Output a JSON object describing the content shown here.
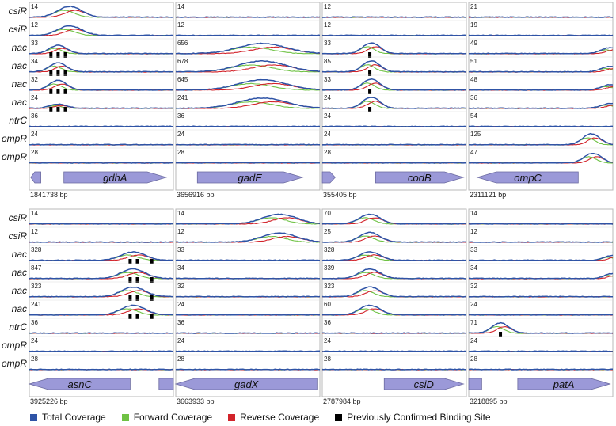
{
  "panels": [
    {
      "tracks": [
        {
          "label": "csiR",
          "cols": [
            {
              "max": "14",
              "peaks": [
                {
                  "pos": 0.28,
                  "h": 0.9,
                  "w": 0.07
                }
              ]
            },
            {
              "max": "14",
              "peaks": []
            },
            {
              "max": "12",
              "peaks": []
            },
            {
              "max": "21",
              "peaks": []
            }
          ]
        },
        {
          "label": "csiR",
          "cols": [
            {
              "max": "12",
              "peaks": [
                {
                  "pos": 0.28,
                  "h": 0.8,
                  "w": 0.07
                }
              ]
            },
            {
              "max": "12",
              "peaks": []
            },
            {
              "max": "12",
              "peaks": []
            },
            {
              "max": "19",
              "peaks": []
            }
          ]
        },
        {
          "label": "nac",
          "cols": [
            {
              "max": "33",
              "peaks": [
                {
                  "pos": 0.2,
                  "h": 0.7,
                  "w": 0.05
                }
              ],
              "sites": [
                0.15,
                0.2,
                0.25
              ]
            },
            {
              "max": "656",
              "peaks": [
                {
                  "pos": 0.6,
                  "h": 0.85,
                  "w": 0.14
                }
              ]
            },
            {
              "max": "33",
              "peaks": [
                {
                  "pos": 0.34,
                  "h": 0.9,
                  "w": 0.05
                }
              ],
              "sites": [
                0.33
              ]
            },
            {
              "max": "49",
              "peaks": [
                {
                  "pos": 0.98,
                  "h": 0.5,
                  "w": 0.05
                }
              ]
            }
          ]
        },
        {
          "label": "nac",
          "cols": [
            {
              "max": "34",
              "peaks": [
                {
                  "pos": 0.2,
                  "h": 0.75,
                  "w": 0.05
                }
              ],
              "sites": [
                0.15,
                0.2,
                0.25
              ]
            },
            {
              "max": "678",
              "peaks": [
                {
                  "pos": 0.6,
                  "h": 0.9,
                  "w": 0.14
                }
              ]
            },
            {
              "max": "85",
              "peaks": [
                {
                  "pos": 0.34,
                  "h": 0.92,
                  "w": 0.05
                }
              ],
              "sites": [
                0.33
              ]
            },
            {
              "max": "51",
              "peaks": [
                {
                  "pos": 0.98,
                  "h": 0.45,
                  "w": 0.05
                }
              ]
            }
          ]
        },
        {
          "label": "nac",
          "cols": [
            {
              "max": "32",
              "peaks": [
                {
                  "pos": 0.2,
                  "h": 0.8,
                  "w": 0.05
                }
              ],
              "sites": [
                0.15,
                0.2,
                0.25
              ]
            },
            {
              "max": "645",
              "peaks": [
                {
                  "pos": 0.6,
                  "h": 0.85,
                  "w": 0.14
                }
              ]
            },
            {
              "max": "33",
              "peaks": [
                {
                  "pos": 0.34,
                  "h": 0.92,
                  "w": 0.05
                }
              ],
              "sites": [
                0.33
              ]
            },
            {
              "max": "48",
              "peaks": [
                {
                  "pos": 0.98,
                  "h": 0.45,
                  "w": 0.05
                }
              ]
            }
          ]
        },
        {
          "label": "nac",
          "cols": [
            {
              "max": "24",
              "peaks": [
                {
                  "pos": 0.2,
                  "h": 0.35,
                  "w": 0.05
                }
              ],
              "sites": [
                0.15,
                0.2,
                0.25
              ]
            },
            {
              "max": "241",
              "peaks": [
                {
                  "pos": 0.6,
                  "h": 0.85,
                  "w": 0.14
                }
              ]
            },
            {
              "max": "24",
              "peaks": [
                {
                  "pos": 0.34,
                  "h": 0.92,
                  "w": 0.05
                }
              ],
              "sites": [
                0.33
              ]
            },
            {
              "max": "36",
              "peaks": [
                {
                  "pos": 0.98,
                  "h": 0.4,
                  "w": 0.05
                }
              ]
            }
          ]
        },
        {
          "label": "ntrC",
          "cols": [
            {
              "max": "36",
              "peaks": []
            },
            {
              "max": "36",
              "peaks": []
            },
            {
              "max": "24",
              "peaks": []
            },
            {
              "max": "54",
              "peaks": []
            }
          ]
        },
        {
          "label": "ompR",
          "cols": [
            {
              "max": "24",
              "peaks": []
            },
            {
              "max": "24",
              "peaks": []
            },
            {
              "max": "24",
              "peaks": []
            },
            {
              "max": "125",
              "peaks": [
                {
                  "pos": 0.85,
                  "h": 0.9,
                  "w": 0.05
                }
              ]
            }
          ]
        },
        {
          "label": "ompR",
          "cols": [
            {
              "max": "28",
              "peaks": []
            },
            {
              "max": "28",
              "peaks": []
            },
            {
              "max": "28",
              "peaks": []
            },
            {
              "max": "47",
              "peaks": [
                {
                  "pos": 0.86,
                  "h": 0.8,
                  "w": 0.05
                }
              ]
            }
          ]
        }
      ],
      "genes": [
        {
          "name": "gdhA",
          "coord": "1841738 bp",
          "main": {
            "x0": 0.24,
            "x1": 0.95,
            "dir": "right"
          },
          "extra": [
            {
              "x0": 0.01,
              "x1": 0.08,
              "dir": "left"
            }
          ]
        },
        {
          "name": "gadE",
          "coord": "3656916 bp",
          "main": {
            "x0": 0.15,
            "x1": 0.88,
            "dir": "right"
          },
          "extra": []
        },
        {
          "name": "codB",
          "coord": "355405 bp",
          "main": {
            "x0": 0.37,
            "x1": 0.98,
            "dir": "right"
          },
          "extra": [
            {
              "x0": 0.0,
              "x1": 0.09,
              "dir": "right"
            }
          ]
        },
        {
          "name": "ompC",
          "coord": "2311121 bp",
          "main": {
            "x0": 0.06,
            "x1": 0.76,
            "dir": "left"
          },
          "extra": []
        }
      ]
    },
    {
      "tracks": [
        {
          "label": "csiR",
          "cols": [
            {
              "max": "14",
              "peaks": []
            },
            {
              "max": "14",
              "peaks": [
                {
                  "pos": 0.72,
                  "h": 0.8,
                  "w": 0.1
                }
              ]
            },
            {
              "max": "70",
              "peaks": [
                {
                  "pos": 0.33,
                  "h": 0.8,
                  "w": 0.06
                }
              ]
            },
            {
              "max": "14",
              "peaks": []
            }
          ]
        },
        {
          "label": "csiR",
          "cols": [
            {
              "max": "12",
              "peaks": []
            },
            {
              "max": "12",
              "peaks": [
                {
                  "pos": 0.72,
                  "h": 0.75,
                  "w": 0.1
                }
              ]
            },
            {
              "max": "25",
              "peaks": [
                {
                  "pos": 0.33,
                  "h": 0.8,
                  "w": 0.06
                }
              ]
            },
            {
              "max": "12",
              "peaks": []
            }
          ]
        },
        {
          "label": "nac",
          "cols": [
            {
              "max": "328",
              "peaks": [
                {
                  "pos": 0.72,
                  "h": 0.7,
                  "w": 0.07
                }
              ],
              "sites": [
                0.7,
                0.75,
                0.85
              ]
            },
            {
              "max": "33",
              "peaks": []
            },
            {
              "max": "328",
              "peaks": [
                {
                  "pos": 0.33,
                  "h": 0.7,
                  "w": 0.06
                }
              ]
            },
            {
              "max": "33",
              "peaks": [
                {
                  "pos": 0.99,
                  "h": 0.4,
                  "w": 0.04
                }
              ]
            }
          ]
        },
        {
          "label": "nac",
          "cols": [
            {
              "max": "847",
              "peaks": [
                {
                  "pos": 0.72,
                  "h": 0.8,
                  "w": 0.07
                }
              ],
              "sites": [
                0.7,
                0.75,
                0.85
              ]
            },
            {
              "max": "34",
              "peaks": []
            },
            {
              "max": "339",
              "peaks": [
                {
                  "pos": 0.33,
                  "h": 0.8,
                  "w": 0.06
                }
              ]
            },
            {
              "max": "34",
              "peaks": [
                {
                  "pos": 0.99,
                  "h": 0.4,
                  "w": 0.04
                }
              ]
            }
          ]
        },
        {
          "label": "nac",
          "cols": [
            {
              "max": "323",
              "peaks": [
                {
                  "pos": 0.72,
                  "h": 0.8,
                  "w": 0.07
                }
              ],
              "sites": [
                0.7,
                0.75,
                0.85
              ]
            },
            {
              "max": "32",
              "peaks": []
            },
            {
              "max": "323",
              "peaks": [
                {
                  "pos": 0.33,
                  "h": 0.8,
                  "w": 0.06
                }
              ]
            },
            {
              "max": "32",
              "peaks": []
            }
          ]
        },
        {
          "label": "nac",
          "cols": [
            {
              "max": "241",
              "peaks": [
                {
                  "pos": 0.72,
                  "h": 0.8,
                  "w": 0.07
                }
              ],
              "sites": [
                0.7,
                0.75,
                0.85
              ]
            },
            {
              "max": "24",
              "peaks": []
            },
            {
              "max": "60",
              "peaks": [
                {
                  "pos": 0.33,
                  "h": 0.8,
                  "w": 0.06
                }
              ]
            },
            {
              "max": "24",
              "peaks": []
            }
          ]
        },
        {
          "label": "ntrC",
          "cols": [
            {
              "max": "36",
              "peaks": []
            },
            {
              "max": "36",
              "peaks": []
            },
            {
              "max": "36",
              "peaks": []
            },
            {
              "max": "71",
              "peaks": [
                {
                  "pos": 0.22,
                  "h": 0.85,
                  "w": 0.05
                }
              ],
              "sites": [
                0.22
              ]
            }
          ]
        },
        {
          "label": "ompR",
          "cols": [
            {
              "max": "24",
              "peaks": []
            },
            {
              "max": "24",
              "peaks": []
            },
            {
              "max": "24",
              "peaks": []
            },
            {
              "max": "24",
              "peaks": []
            }
          ]
        },
        {
          "label": "ompR",
          "cols": [
            {
              "max": "28",
              "peaks": []
            },
            {
              "max": "28",
              "peaks": []
            },
            {
              "max": "28",
              "peaks": []
            },
            {
              "max": "28",
              "peaks": []
            }
          ]
        }
      ],
      "genes": [
        {
          "name": "asnC",
          "coord": "3925226 bp",
          "main": {
            "x0": 0.0,
            "x1": 0.7,
            "dir": "left"
          },
          "extra": [
            {
              "x0": 0.9,
              "x1": 1.0,
              "dir": "none"
            }
          ]
        },
        {
          "name": "gadX",
          "coord": "3663933 bp",
          "main": {
            "x0": 0.0,
            "x1": 0.98,
            "dir": "left"
          },
          "extra": []
        },
        {
          "name": "csiD",
          "coord": "2787984 bp",
          "main": {
            "x0": 0.43,
            "x1": 0.98,
            "dir": "right"
          },
          "extra": []
        },
        {
          "name": "patA",
          "coord": "3218895 bp",
          "main": {
            "x0": 0.34,
            "x1": 0.98,
            "dir": "right"
          },
          "extra": [
            {
              "x0": 0.0,
              "x1": 0.09,
              "dir": "none"
            }
          ]
        }
      ]
    }
  ],
  "legend": [
    {
      "label": "Total Coverage",
      "color": "#2e53a6"
    },
    {
      "label": "Forward Coverage",
      "color": "#6fc244"
    },
    {
      "label": "Reverse Coverage",
      "color": "#d2232a"
    },
    {
      "label": "Previously Confirmed Binding Site",
      "color": "#000000"
    }
  ],
  "colors": {
    "total": "#2e53a6",
    "forward": "#6fc244",
    "reverse": "#d2232a",
    "site": "#000000",
    "gene_fill": "#9b99d8",
    "gene_stroke": "#6b6aa0",
    "frame": "#b8b8b8"
  }
}
